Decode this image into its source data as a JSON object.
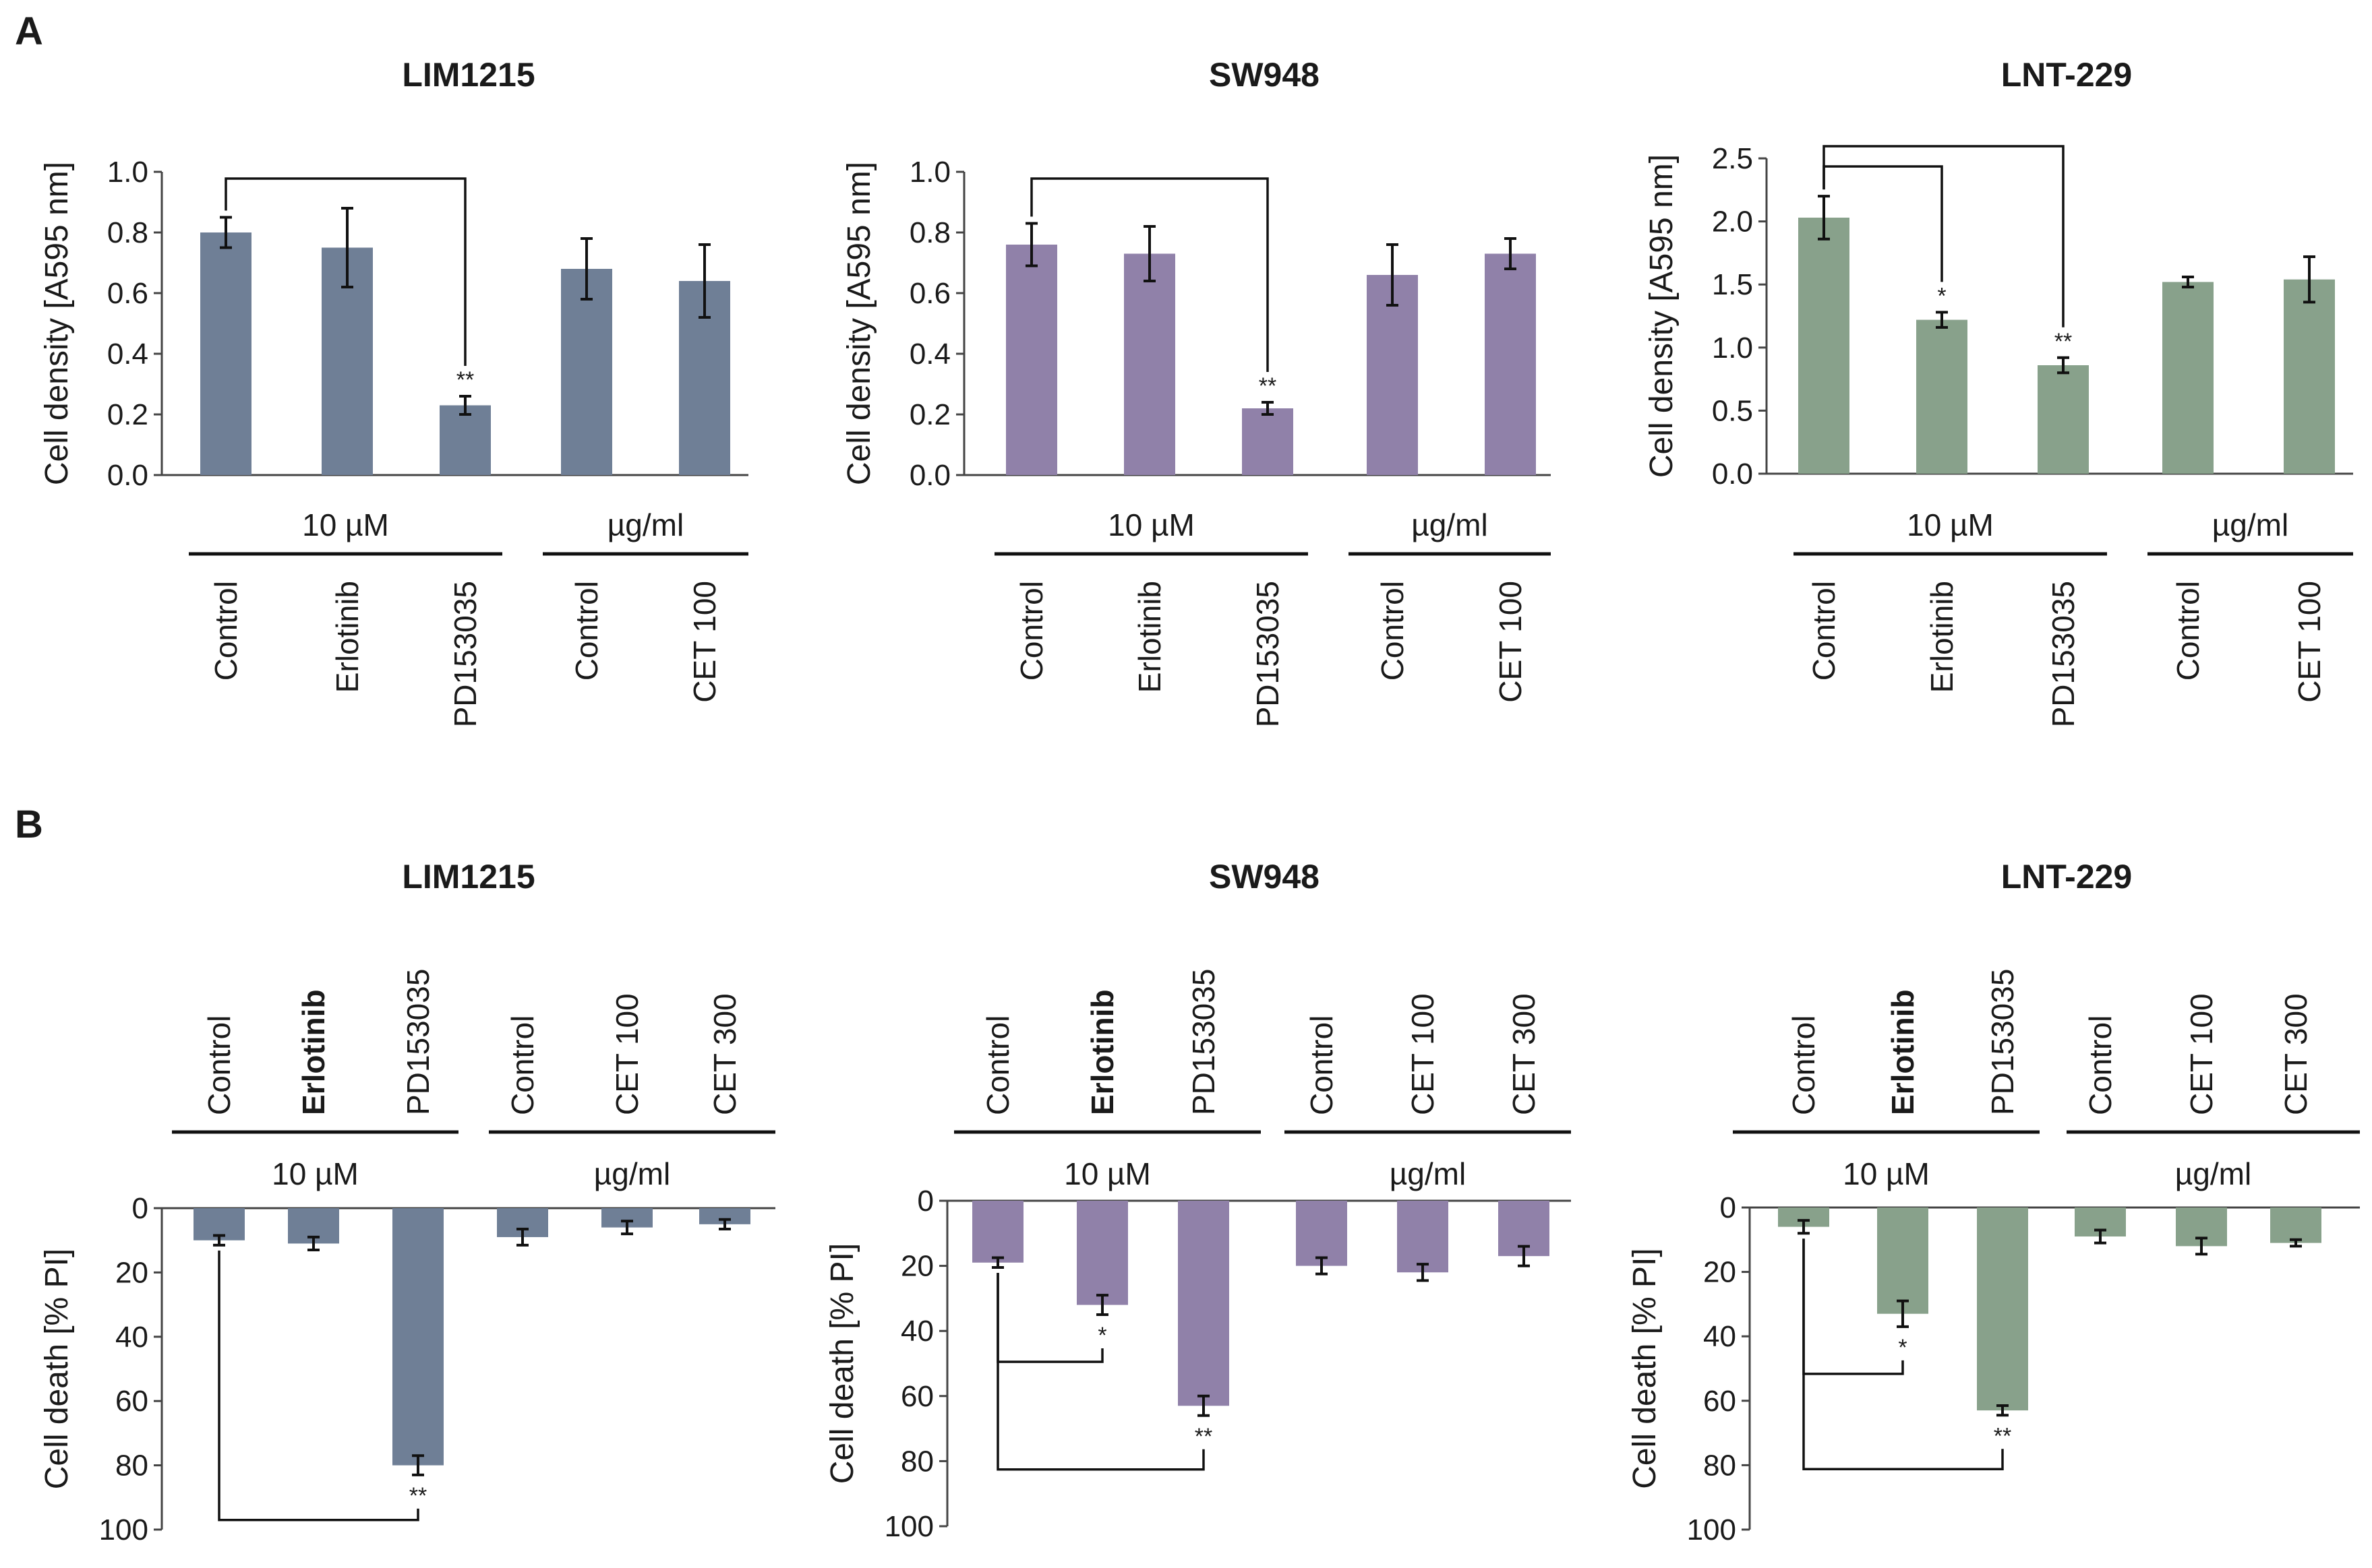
{
  "figure": {
    "panel_A_label": "A",
    "panel_B_label": "B"
  },
  "colors": {
    "LIM1215": "#6f7f96",
    "SW948": "#9081a9",
    "LNT-229": "#88a18b"
  },
  "chart_data": [
    {
      "panel": "A",
      "type": "bar",
      "title": "LIM1215",
      "color_key": "LIM1215",
      "ylabel": "Cell density [A595 nm]",
      "ylim": [
        0,
        1.0
      ],
      "yticks": [
        "0.0",
        "0.2",
        "0.4",
        "0.6",
        "0.8",
        "1.0"
      ],
      "categories": [
        "Control",
        "Erlotinib",
        "PD153035",
        "Control",
        "CET 100"
      ],
      "values": [
        0.8,
        0.75,
        0.23,
        0.68,
        0.64
      ],
      "errors": [
        0.05,
        0.13,
        0.03,
        0.1,
        0.12
      ],
      "groups": [
        {
          "label": "10 µM",
          "members": [
            0,
            1,
            2
          ]
        },
        {
          "label": "µg/ml",
          "members": [
            3,
            4
          ]
        }
      ],
      "significance": [
        {
          "from": 0,
          "to": 2,
          "label": "**"
        }
      ]
    },
    {
      "panel": "A",
      "type": "bar",
      "title": "SW948",
      "color_key": "SW948",
      "ylabel": "Cell density [A595 nm]",
      "ylim": [
        0,
        1.0
      ],
      "yticks": [
        "0.0",
        "0.2",
        "0.4",
        "0.6",
        "0.8",
        "1.0"
      ],
      "categories": [
        "Control",
        "Erlotinib",
        "PD153035",
        "Control",
        "CET 100"
      ],
      "values": [
        0.76,
        0.73,
        0.22,
        0.66,
        0.73
      ],
      "errors": [
        0.07,
        0.09,
        0.02,
        0.1,
        0.05
      ],
      "groups": [
        {
          "label": "10 µM",
          "members": [
            0,
            1,
            2
          ]
        },
        {
          "label": "µg/ml",
          "members": [
            3,
            4
          ]
        }
      ],
      "significance": [
        {
          "from": 0,
          "to": 2,
          "label": "**"
        }
      ]
    },
    {
      "panel": "A",
      "type": "bar",
      "title": "LNT-229",
      "color_key": "LNT-229",
      "ylabel": "Cell density [A595 nm]",
      "ylim": [
        0,
        2.5
      ],
      "yticks": [
        "0.0",
        "0.5",
        "1.0",
        "1.5",
        "2.0",
        "2.5"
      ],
      "categories": [
        "Control",
        "Erlotinib",
        "PD153035",
        "Control",
        "CET 100"
      ],
      "values": [
        2.03,
        1.22,
        0.86,
        1.52,
        1.54
      ],
      "errors": [
        0.17,
        0.06,
        0.06,
        0.04,
        0.18
      ],
      "groups": [
        {
          "label": "10 µM",
          "members": [
            0,
            1,
            2
          ]
        },
        {
          "label": "µg/ml",
          "members": [
            3,
            4
          ]
        }
      ],
      "significance": [
        {
          "from": 0,
          "to": 1,
          "label": "*"
        },
        {
          "from": 0,
          "to": 2,
          "label": "**"
        }
      ]
    },
    {
      "panel": "B",
      "type": "bar",
      "title": "LIM1215",
      "color_key": "LIM1215",
      "ylabel": "Cell death [% PI]",
      "ylim": [
        0,
        100
      ],
      "yticks": [
        "0",
        "20",
        "40",
        "60",
        "80",
        "100"
      ],
      "categories": [
        "Control",
        "Erlotinib",
        "PD153035",
        "Control",
        "CET 100",
        "CET 300"
      ],
      "values": [
        10,
        11,
        80,
        9,
        6,
        5
      ],
      "errors": [
        1.5,
        2,
        3,
        2.5,
        2,
        1.5
      ],
      "groups": [
        {
          "label": "10 µM",
          "members": [
            0,
            1,
            2
          ]
        },
        {
          "label": "µg/ml",
          "members": [
            3,
            4,
            5
          ]
        }
      ],
      "significance": [
        {
          "from": 0,
          "to": 2,
          "label": "**"
        }
      ]
    },
    {
      "panel": "B",
      "type": "bar",
      "title": "SW948",
      "color_key": "SW948",
      "ylabel": "Cell death [% PI]",
      "ylim": [
        0,
        100
      ],
      "yticks": [
        "0",
        "20",
        "40",
        "60",
        "80",
        "100"
      ],
      "categories": [
        "Control",
        "Erlotinib",
        "PD153035",
        "Control",
        "CET 100",
        "CET 300"
      ],
      "values": [
        19,
        32,
        63,
        20,
        22,
        17
      ],
      "errors": [
        1.5,
        3,
        3,
        2.5,
        2.5,
        3
      ],
      "groups": [
        {
          "label": "10 µM",
          "members": [
            0,
            1,
            2
          ]
        },
        {
          "label": "µg/ml",
          "members": [
            3,
            4,
            5
          ]
        }
      ],
      "significance": [
        {
          "from": 0,
          "to": 1,
          "label": "*"
        },
        {
          "from": 0,
          "to": 2,
          "label": "**"
        }
      ]
    },
    {
      "panel": "B",
      "type": "bar",
      "title": "LNT-229",
      "color_key": "LNT-229",
      "ylabel": "Cell death [% PI]",
      "ylim": [
        0,
        100
      ],
      "yticks": [
        "0",
        "20",
        "40",
        "60",
        "80",
        "100"
      ],
      "categories": [
        "Control",
        "Erlotinib",
        "PD153035",
        "Control",
        "CET 100",
        "CET 300"
      ],
      "values": [
        6,
        33,
        63,
        9,
        12,
        11
      ],
      "errors": [
        2,
        4,
        1.5,
        2,
        2.5,
        1
      ],
      "groups": [
        {
          "label": "10 µM",
          "members": [
            0,
            1,
            2
          ]
        },
        {
          "label": "µg/ml",
          "members": [
            3,
            4,
            5
          ]
        }
      ],
      "significance": [
        {
          "from": 0,
          "to": 1,
          "label": "*"
        },
        {
          "from": 0,
          "to": 2,
          "label": "**"
        }
      ]
    }
  ]
}
